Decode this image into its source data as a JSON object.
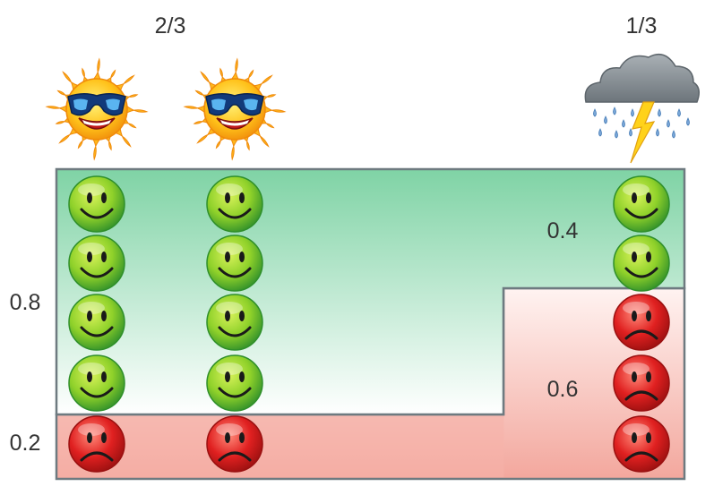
{
  "fractions": {
    "sunny": "2/3",
    "stormy": "1/3"
  },
  "side_probabilities": {
    "upper": "0.8",
    "lower": "0.2"
  },
  "stormy_probabilities": {
    "happy": "0.4",
    "sad": "0.6"
  },
  "colors": {
    "green_region": "#7fd3a5",
    "red_region": "#f3a79d",
    "region_border": "#6e7a80",
    "happy_face": "#8fd12a",
    "happy_face_rim": "#2f8f2a",
    "sad_face": "#e02020",
    "sad_face_rim": "#9a1010",
    "sun": "#ffc21a",
    "cloud": "#8c949a",
    "rain": "#7aa7d8",
    "lightning": "#ffd21a"
  },
  "icons": {
    "sunny": "sun-with-sunglasses-icon",
    "stormy": "storm-cloud-icon",
    "happy": "happy-face-icon",
    "sad": "sad-face-icon"
  },
  "columns": [
    {
      "weather": "sunny",
      "faces": [
        "happy",
        "happy",
        "happy",
        "happy",
        "sad"
      ]
    },
    {
      "weather": "sunny",
      "faces": [
        "happy",
        "happy",
        "happy",
        "happy",
        "sad"
      ]
    },
    {
      "weather": "stormy",
      "faces": [
        "happy",
        "happy",
        "sad",
        "sad",
        "sad"
      ]
    }
  ]
}
